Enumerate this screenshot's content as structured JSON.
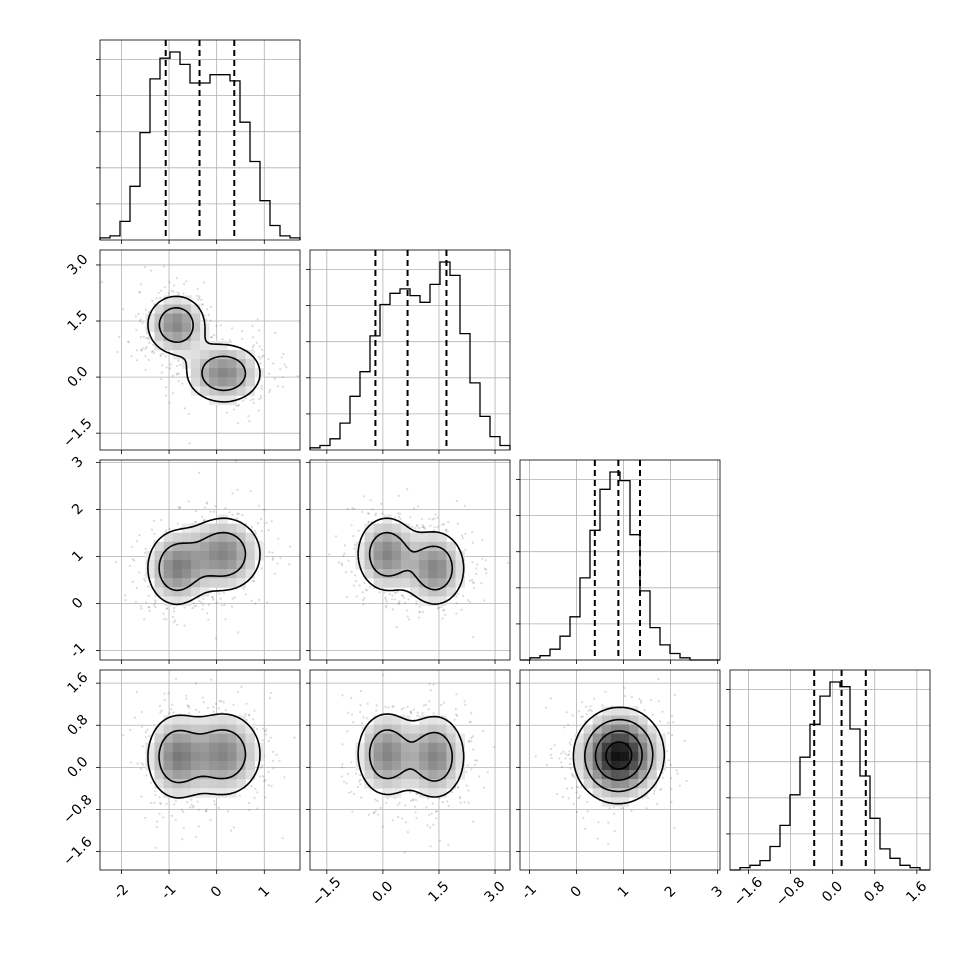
{
  "chart_data": {
    "type": "corner",
    "parameters": [
      {
        "ticks": [
          -2,
          -1,
          0,
          1
        ],
        "range": [
          -2.45,
          1.75
        ],
        "hist_edges_start": -2.45,
        "hist_bin_width": 0.21,
        "hist_counts": [
          1,
          2,
          9,
          26,
          52,
          78,
          88,
          91,
          85,
          76,
          76,
          80,
          80,
          77,
          57,
          38,
          19,
          7,
          2,
          1
        ],
        "quantiles": [
          -1.07,
          -0.36,
          0.37
        ]
      },
      {
        "ticks": [
          -1.5,
          0.0,
          1.5,
          3.0
        ],
        "tick_labels": [
          "−1.5",
          "0.0",
          "1.5",
          "3.0"
        ],
        "range": [
          -1.95,
          3.4
        ],
        "hist_edges_start": -1.95,
        "hist_bin_width": 0.2675,
        "hist_counts": [
          1,
          2,
          5,
          12,
          24,
          35,
          51,
          65,
          70,
          72,
          69,
          66,
          74,
          84,
          78,
          52,
          30,
          15,
          6,
          2
        ],
        "quantiles": [
          -0.2,
          0.66,
          1.7
        ]
      },
      {
        "ticks": [
          -1,
          0,
          1,
          2,
          3
        ],
        "range": [
          -1.2,
          3.05
        ],
        "hist_edges_start": -1.2,
        "hist_bin_width": 0.2125,
        "hist_counts": [
          0,
          1,
          2,
          5,
          11,
          20,
          38,
          60,
          79,
          87,
          83,
          58,
          32,
          15,
          7,
          3,
          1,
          0,
          0,
          0
        ],
        "quantiles": [
          0.39,
          0.89,
          1.35
        ]
      },
      {
        "ticks": [
          -1.6,
          -0.8,
          0.0,
          0.8,
          1.6
        ],
        "tick_labels": [
          "−1.6",
          "−0.8",
          "0.0",
          "0.8",
          "1.6"
        ],
        "range": [
          -1.95,
          1.85
        ],
        "hist_edges_start": -1.95,
        "hist_bin_width": 0.19,
        "hist_counts": [
          0,
          1,
          2,
          4,
          10,
          19,
          32,
          48,
          62,
          74,
          80,
          78,
          60,
          40,
          22,
          9,
          5,
          2,
          1,
          0
        ],
        "quantiles": [
          -0.35,
          0.17,
          0.63
        ]
      }
    ],
    "modes": [
      {
        "mean": [
          -0.85,
          1.4,
          0.75,
          0.2
        ],
        "sigma": [
          0.35,
          0.45,
          0.45,
          0.45
        ],
        "weight": 0.5
      },
      {
        "mean": [
          0.15,
          0.1,
          1.05,
          0.25
        ],
        "sigma": [
          0.45,
          0.45,
          0.45,
          0.45
        ],
        "weight": 0.5
      }
    ],
    "contour_levels": [
      0.12,
      0.3,
      0.55,
      0.8
    ],
    "grid_lines": true
  }
}
